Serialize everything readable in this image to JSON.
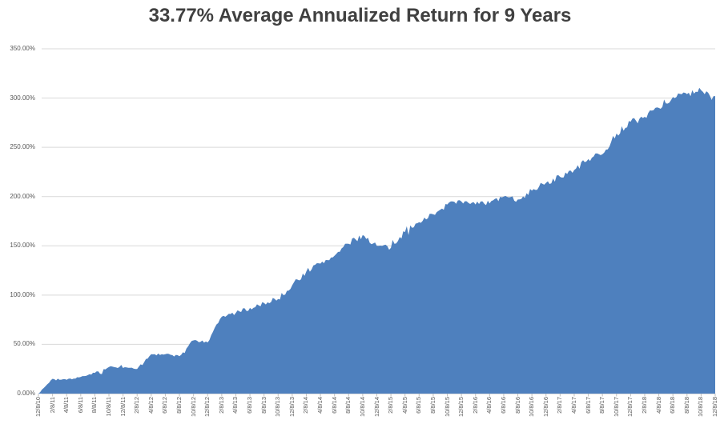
{
  "title": "33.77% Average Annualized Return for 9 Years",
  "colors": {
    "area_fill": "#4E80BE",
    "title_text": "#404040",
    "axis_label_text": "#595959",
    "gridline": "#D9D9D9",
    "axis_line": "#BFBFBF",
    "background": "#FFFFFF"
  },
  "chart_data": {
    "type": "area",
    "title": "33.77% Average Annualized Return for 9 Years",
    "xlabel": "",
    "ylabel": "",
    "legend": "none",
    "grid": "horizontal",
    "x": [
      "12/8/10",
      "2/8/11",
      "4/8/11",
      "6/8/11",
      "8/8/11",
      "10/8/11",
      "12/8/11",
      "2/8/12",
      "4/8/12",
      "6/8/12",
      "8/8/12",
      "10/8/12",
      "12/8/12",
      "2/8/13",
      "4/8/13",
      "6/8/13",
      "8/8/13",
      "10/8/13",
      "12/8/13",
      "2/8/14",
      "4/8/14",
      "6/8/14",
      "8/8/14",
      "10/8/14",
      "12/8/14",
      "2/8/15",
      "4/8/15",
      "6/8/15",
      "8/8/15",
      "10/8/15",
      "12/8/15",
      "2/8/16",
      "4/8/16",
      "6/8/16",
      "8/8/16",
      "10/8/16",
      "12/8/16",
      "2/8/17",
      "4/8/17",
      "6/8/17",
      "8/8/17",
      "10/8/17",
      "12/8/17",
      "2/8/18",
      "4/8/18",
      "6/8/18",
      "8/8/18",
      "10/8/18",
      "12/8/18"
    ],
    "values": [
      0,
      15,
      14,
      17,
      21,
      27,
      26,
      25,
      40,
      40,
      38,
      54,
      52,
      78,
      82,
      87,
      92,
      96,
      110,
      124,
      132,
      140,
      152,
      161,
      150,
      148,
      164,
      174,
      182,
      192,
      195,
      192,
      193,
      200,
      197,
      206,
      214,
      220,
      227,
      238,
      243,
      264,
      276,
      281,
      290,
      301,
      304,
      308,
      302
    ],
    "value_unit": "percent",
    "y_axis": {
      "min": 0,
      "max": 350,
      "step": 50,
      "tick_labels_top_to_bottom": [
        "350.00%",
        "300.00%",
        "250.00%",
        "200.00%",
        "150.00%",
        "100.00%",
        "50.00%",
        "0.00%"
      ]
    }
  }
}
